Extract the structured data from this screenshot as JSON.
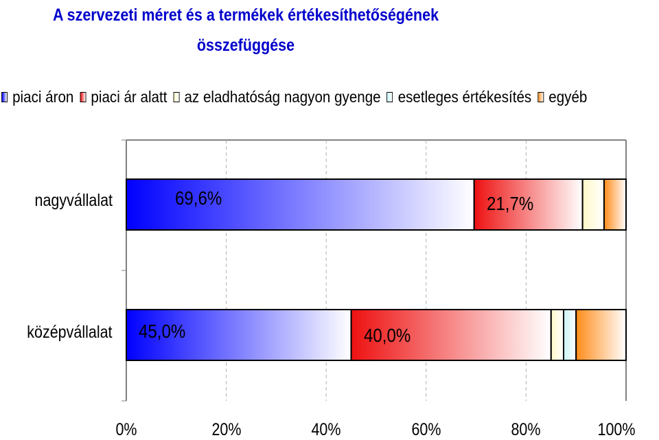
{
  "chart_data": {
    "type": "bar",
    "orientation": "horizontal",
    "stacked": true,
    "percent_stacked": true,
    "title": [
      "A szervezeti méret és a termékek értékesíthetőségének",
      "összefüggése"
    ],
    "categories": [
      "nagyvállalat",
      "középvállalat"
    ],
    "series": [
      {
        "name": "piaci áron",
        "color": "#0000ff",
        "values": [
          69.6,
          45.0
        ],
        "labels": [
          "69,6%",
          "45,0%"
        ]
      },
      {
        "name": "piaci ár alatt",
        "color": "#ee1111",
        "values": [
          21.7,
          40.0
        ],
        "labels": [
          "21,7%",
          "40,0%"
        ]
      },
      {
        "name": "az eladhatóság nagyon gyenge",
        "color": "#fff8c8",
        "values": [
          4.3,
          2.5
        ],
        "labels": [
          "",
          ""
        ]
      },
      {
        "name": "esetleges értékesítés",
        "color": "#c8f4f8",
        "values": [
          0.0,
          2.5
        ],
        "labels": [
          "",
          ""
        ]
      },
      {
        "name": "egyéb",
        "color": "#ff8c1a",
        "values": [
          4.4,
          10.0
        ],
        "labels": [
          "",
          ""
        ]
      }
    ],
    "x_ticks": [
      "0%",
      "20%",
      "40%",
      "60%",
      "80%",
      "100%"
    ],
    "xlim": [
      0,
      100
    ],
    "grid": true,
    "legend_position": "top"
  }
}
